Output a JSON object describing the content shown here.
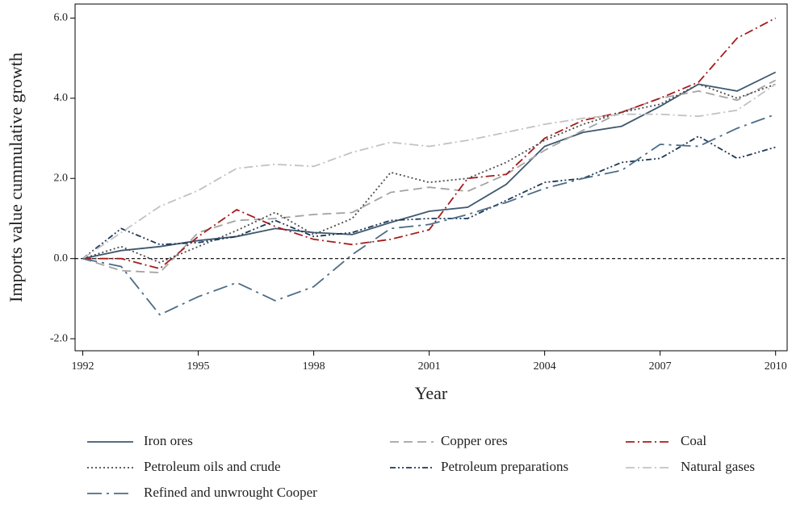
{
  "chart_data": {
    "type": "line",
    "x_label": "Year",
    "y_label": "Imports value cummulative growth",
    "x": [
      1992,
      1993,
      1994,
      1995,
      1996,
      1997,
      1998,
      1999,
      2000,
      2001,
      2002,
      2003,
      2004,
      2005,
      2006,
      2007,
      2008,
      2009,
      2010
    ],
    "xlim": [
      1991.8,
      2010.3
    ],
    "xticks": [
      1992,
      1995,
      1998,
      2001,
      2004,
      2007,
      2010
    ],
    "ylim": [
      -2.3,
      6.35
    ],
    "yticks": [
      {
        "value": -2,
        "label": "-2.0"
      },
      {
        "value": 0,
        "label": "0.0"
      },
      {
        "value": 2,
        "label": "2.0"
      },
      {
        "value": 4,
        "label": "4.0"
      },
      {
        "value": 6,
        "label": "6.0"
      }
    ],
    "reference_line": {
      "y": 0,
      "style": "dashed"
    },
    "legend": "bottom",
    "series": [
      {
        "name": "Iron ores",
        "color": "#3d5870",
        "style": "solid",
        "values": [
          0,
          0.2,
          0.3,
          0.45,
          0.55,
          0.75,
          0.65,
          0.6,
          0.9,
          1.18,
          1.28,
          1.85,
          2.8,
          3.15,
          3.3,
          3.8,
          4.35,
          4.18,
          4.65
        ]
      },
      {
        "name": "Copper ores",
        "color": "#a3a3a3",
        "style": "dashed",
        "values": [
          0,
          -0.3,
          -0.35,
          0.65,
          0.95,
          1.0,
          1.1,
          1.15,
          1.65,
          1.78,
          1.68,
          2.1,
          2.7,
          3.2,
          3.65,
          4.0,
          4.18,
          3.95,
          4.45
        ]
      },
      {
        "name": "Coal",
        "color": "#a61c1c",
        "style": "dashdot",
        "values": [
          0,
          0.0,
          -0.25,
          0.55,
          1.22,
          0.8,
          0.48,
          0.35,
          0.48,
          0.72,
          2.0,
          2.1,
          3.0,
          3.45,
          3.65,
          4.0,
          4.4,
          5.5,
          6.0
        ]
      },
      {
        "name": "Petroleum oils and crude",
        "color": "#4a4a4a",
        "style": "dotted",
        "values": [
          0,
          0.3,
          -0.1,
          0.3,
          0.7,
          1.15,
          0.6,
          1.0,
          2.15,
          1.9,
          2.0,
          2.4,
          2.95,
          3.35,
          3.65,
          3.85,
          4.35,
          4.0,
          4.35
        ]
      },
      {
        "name": "Petroleum preparations",
        "color": "#1c3857",
        "style": "dashdotdot",
        "values": [
          0,
          0.75,
          0.35,
          0.4,
          0.55,
          0.95,
          0.55,
          0.65,
          0.95,
          1.0,
          1.0,
          1.45,
          1.9,
          2.0,
          2.4,
          2.5,
          3.05,
          2.5,
          2.78
        ]
      },
      {
        "name": "Natural gases",
        "color": "#c2c2c2",
        "style": "dashdot",
        "values": [
          0,
          0.65,
          1.3,
          1.7,
          2.25,
          2.35,
          2.3,
          2.65,
          2.9,
          2.8,
          2.95,
          3.15,
          3.35,
          3.5,
          3.6,
          3.6,
          3.55,
          3.7,
          4.35
        ]
      },
      {
        "name": "Refined and unwrought Cooper",
        "color": "#4c6c87",
        "style": "longdashdot",
        "values": [
          0,
          -0.2,
          -1.4,
          -0.95,
          -0.6,
          -1.05,
          -0.7,
          0.1,
          0.75,
          0.85,
          1.1,
          1.4,
          1.75,
          2.0,
          2.2,
          2.85,
          2.8,
          3.25,
          3.6
        ]
      }
    ]
  }
}
